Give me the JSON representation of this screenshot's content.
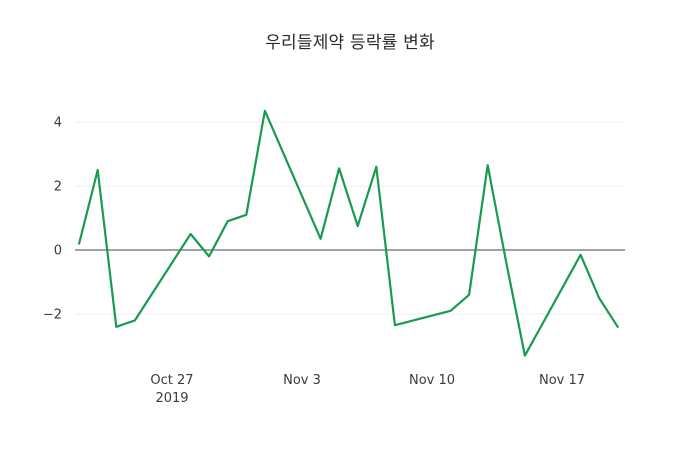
{
  "title": "우리들제약 등락률 변화",
  "colors": {
    "line": "#189b51",
    "grid": "#ececec",
    "zero_line": "#444444",
    "title_text": "#2a2a2a",
    "tick_text": "#3b3b3b",
    "background": "#ffffff"
  },
  "chart_data": {
    "type": "line",
    "title": "우리들제약 등락률 변화",
    "xlabel": "",
    "ylabel": "",
    "legend": "none",
    "grid": "horizontal",
    "line_color": "#189b51",
    "x_dates": [
      "2019-10-22",
      "2019-10-23",
      "2019-10-24",
      "2019-10-25",
      "2019-10-28",
      "2019-10-29",
      "2019-10-30",
      "2019-10-31",
      "2019-11-01",
      "2019-11-04",
      "2019-11-05",
      "2019-11-06",
      "2019-11-07",
      "2019-11-08",
      "2019-11-11",
      "2019-11-12",
      "2019-11-13",
      "2019-11-14",
      "2019-11-15",
      "2019-11-18",
      "2019-11-19",
      "2019-11-20"
    ],
    "values": [
      0.2,
      2.5,
      -2.4,
      -2.2,
      0.5,
      -0.2,
      0.9,
      1.1,
      4.35,
      0.35,
      2.55,
      0.75,
      2.6,
      -2.35,
      -1.9,
      -1.4,
      2.65,
      -0.4,
      -3.3,
      -0.15,
      -1.5,
      -2.4
    ],
    "ylim": [
      -3.9,
      4.9
    ],
    "yticks": [
      4,
      2,
      0,
      -2
    ],
    "xticks": [
      {
        "date": "2019-10-27",
        "label": "Oct 27",
        "sublabel": "2019"
      },
      {
        "date": "2019-11-03",
        "label": "Nov 3",
        "sublabel": ""
      },
      {
        "date": "2019-11-10",
        "label": "Nov 10",
        "sublabel": ""
      },
      {
        "date": "2019-11-17",
        "label": "Nov 17",
        "sublabel": ""
      }
    ]
  }
}
